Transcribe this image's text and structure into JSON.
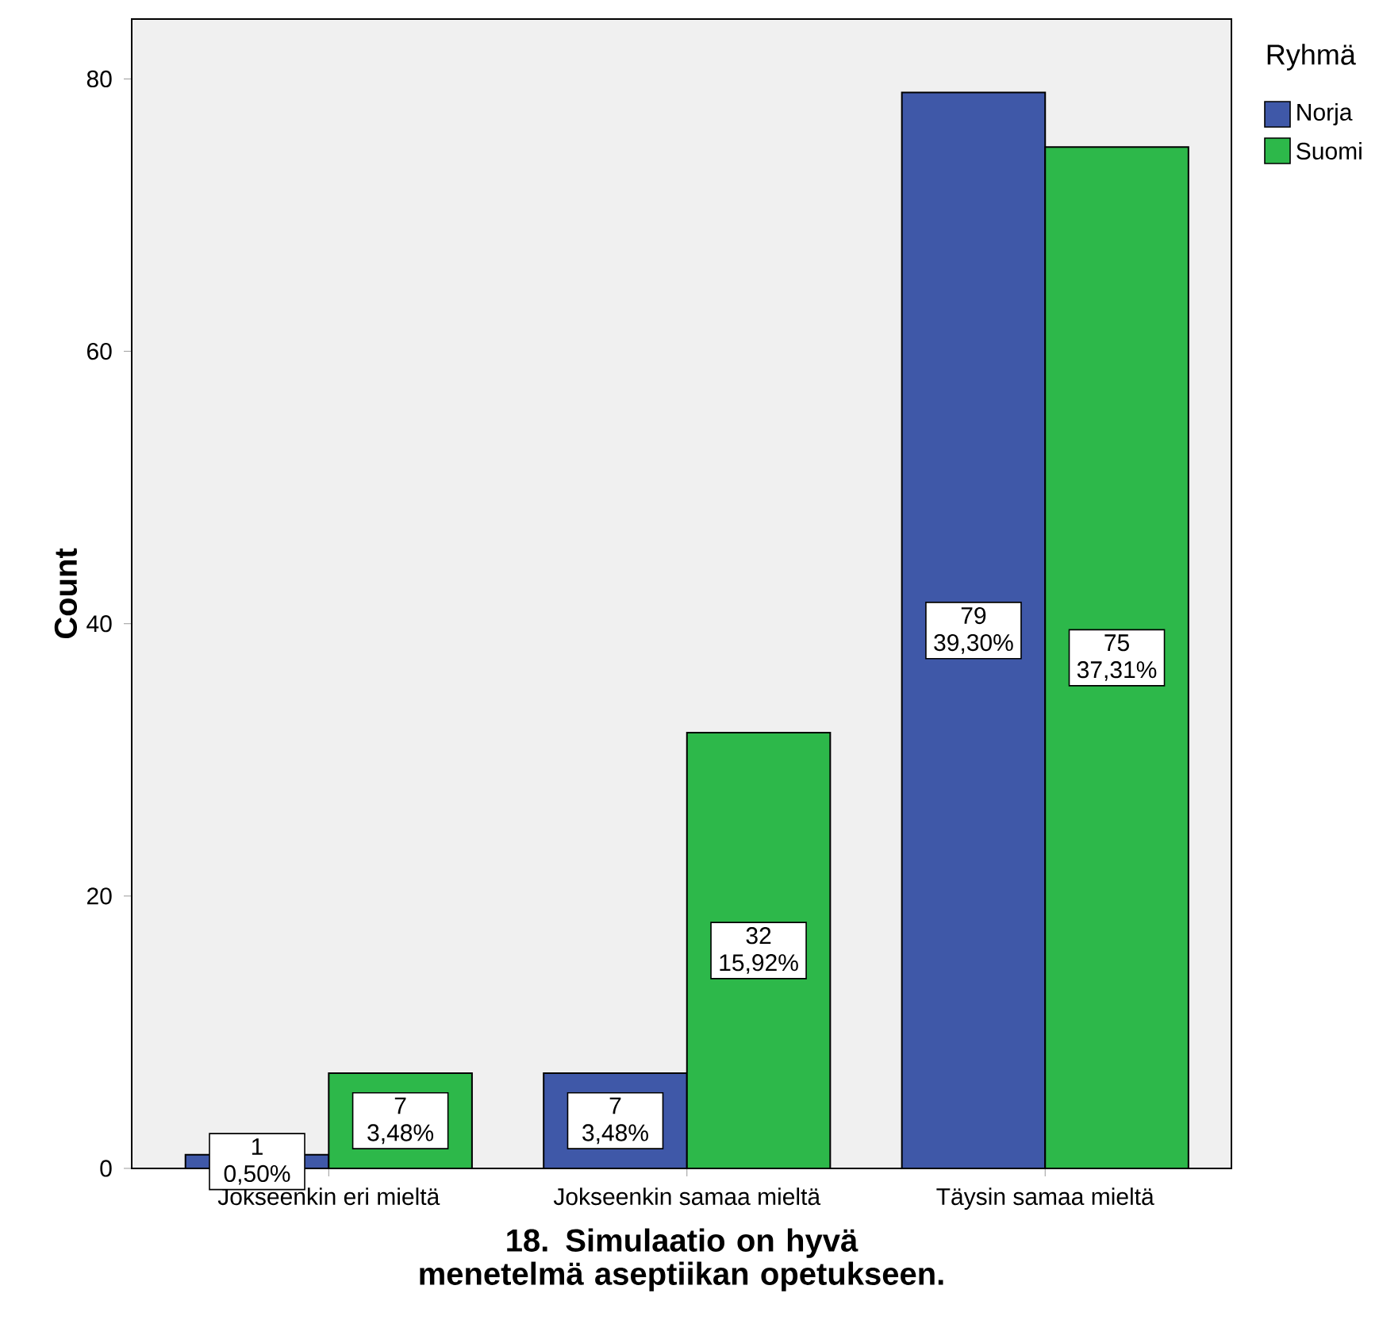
{
  "chart_data": {
    "type": "bar",
    "xlabel": "18. Simulaatio on hyvä menetelmä aseptiikan opetukseen.",
    "ylabel": "Count",
    "legend_title": "Ryhmä",
    "categories": [
      "Jokseenkin eri mieltä",
      "Jokseenkin samaa mieltä",
      "Täysin samaa mieltä"
    ],
    "series": [
      {
        "name": "Norja",
        "color": "#3f58a8",
        "values": [
          1,
          7,
          79
        ],
        "value_labels": [
          "1 0,50%",
          "7 3,48%",
          "79 39,30%"
        ]
      },
      {
        "name": "Suomi",
        "color": "#2db84a",
        "values": [
          7,
          32,
          75
        ],
        "value_labels": [
          "7 3,48%",
          "32 15,92%",
          "75 37,31%"
        ]
      }
    ],
    "ylim": [
      0,
      84.4
    ],
    "yticks": [
      0,
      20,
      40,
      60,
      80
    ],
    "legend": "right"
  }
}
